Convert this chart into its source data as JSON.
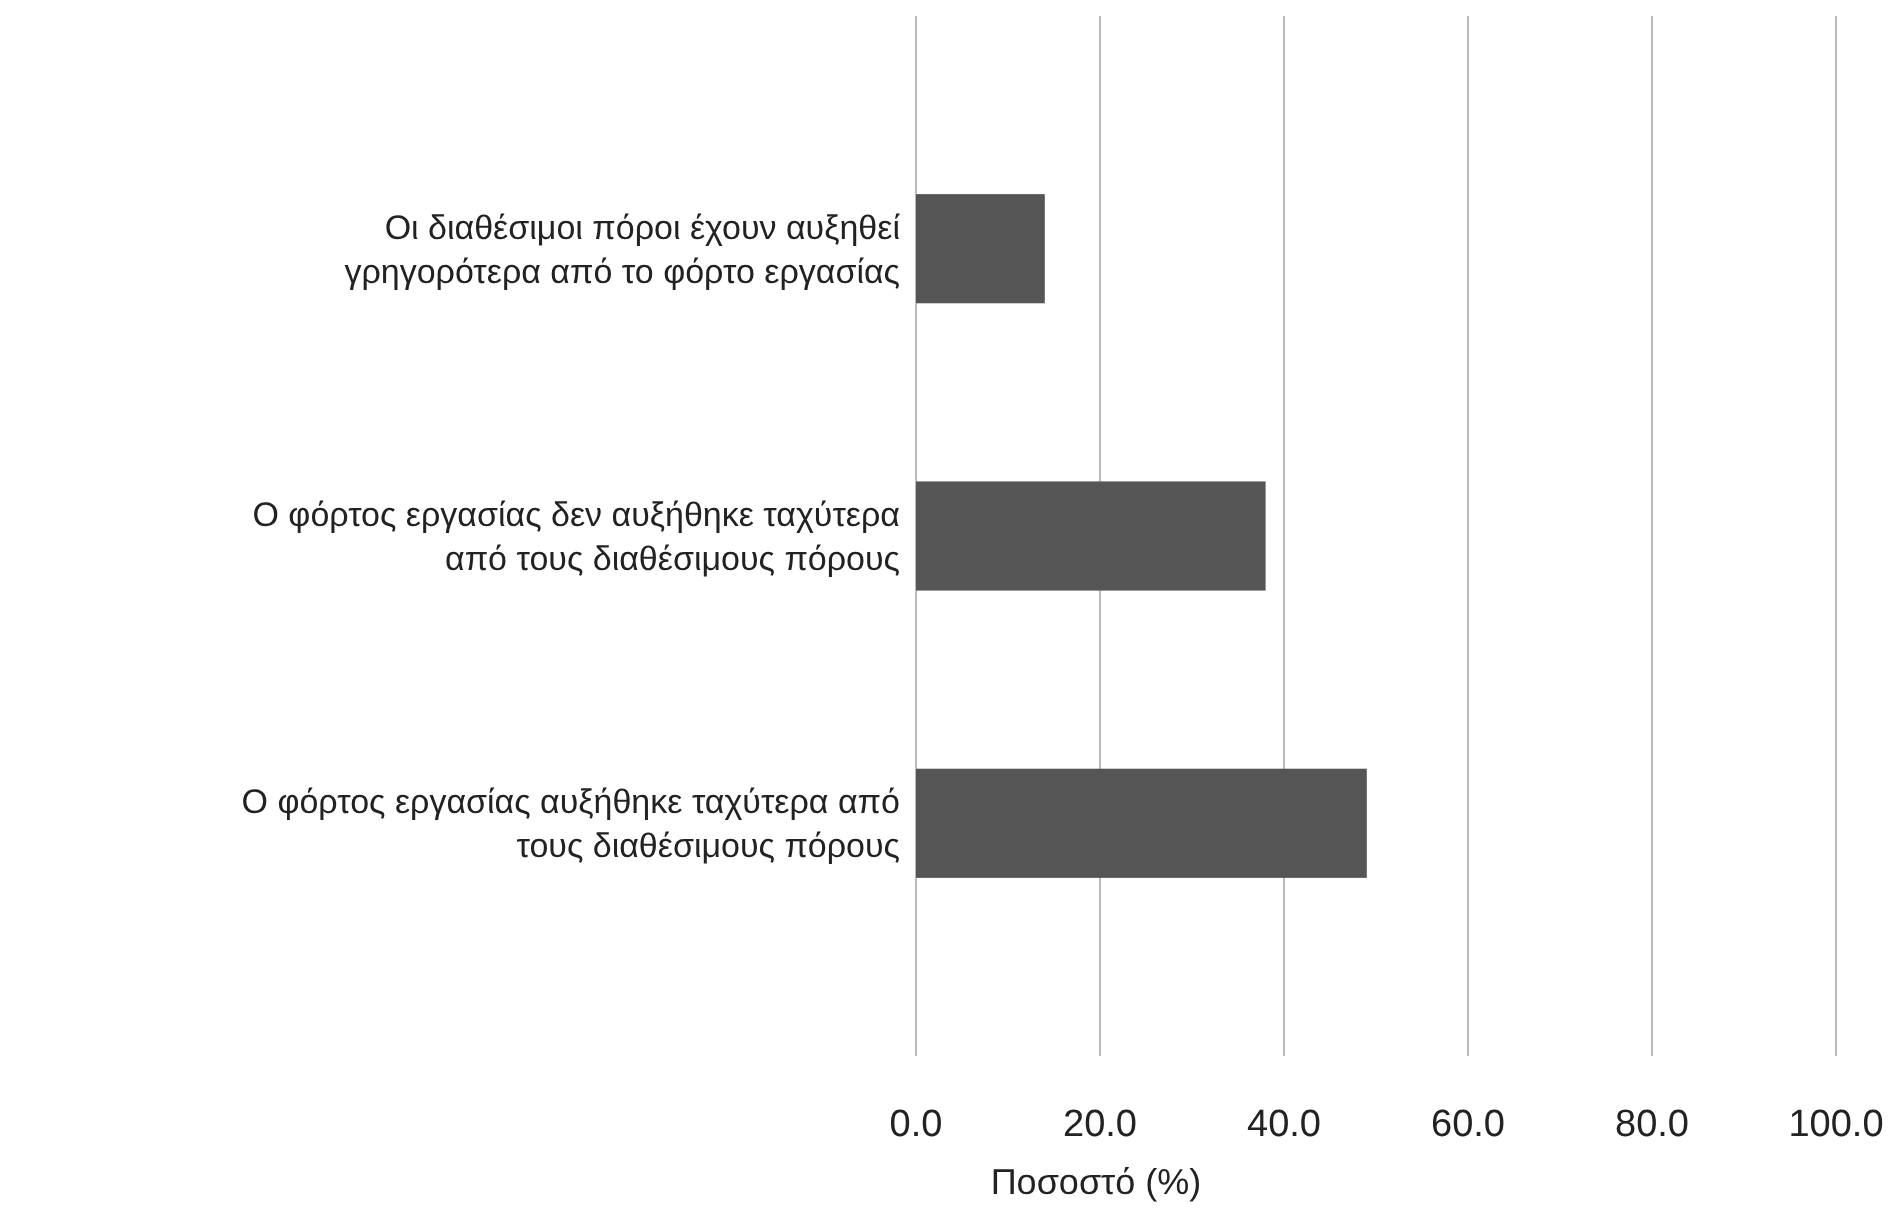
{
  "chart_data": {
    "type": "bar",
    "orientation": "horizontal",
    "xlabel": "Ποσοστό (%)",
    "categories": [
      "Οι διαθέσιμοι πόροι έχουν αυξηθεί γρηγορότερα από το φόρτο εργασίας",
      "Ο φόρτος εργασίας δεν αυξήθηκε ταχύτερα από τους διαθέσιμους πόρους",
      "Ο φόρτος εργασίας αυξήθηκε ταχύτερα από τους διαθέσιμους πόρους"
    ],
    "values": [
      14,
      38,
      49
    ],
    "color": "#555555",
    "xlim": [
      0,
      100
    ],
    "xticks": [
      {
        "value": 0,
        "label": "0.0"
      },
      {
        "value": 20,
        "label": "20.0"
      },
      {
        "value": 40,
        "label": "40.0"
      },
      {
        "value": 60,
        "label": "60.0"
      },
      {
        "value": 80,
        "label": "80.0"
      },
      {
        "value": 100,
        "label": "100.0"
      }
    ],
    "grid": "x"
  }
}
